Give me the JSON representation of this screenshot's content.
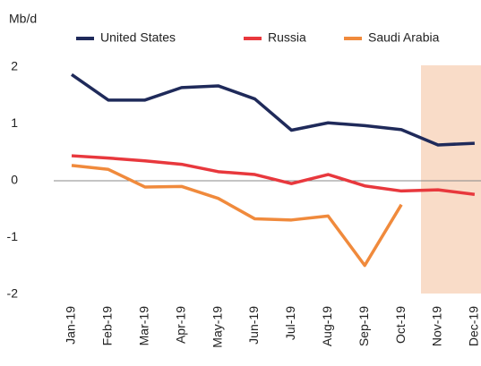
{
  "chart_data": {
    "type": "line",
    "y_label": "Mb/d",
    "categories": [
      "Jan-19",
      "Feb-19",
      "Mar-19",
      "Apr-19",
      "May-19",
      "Jun-19",
      "Jul-19",
      "Aug-19",
      "Sep-19",
      "Oct-19",
      "Nov-19",
      "Dec-19"
    ],
    "series": [
      {
        "name": "United States",
        "color": "#1f2a5a",
        "values": [
          1.87,
          1.42,
          1.42,
          1.64,
          1.67,
          1.44,
          0.89,
          1.02,
          0.97,
          0.9,
          0.63,
          0.66
        ]
      },
      {
        "name": "Russia",
        "color": "#e8383d",
        "values": [
          0.44,
          0.4,
          0.35,
          0.29,
          0.16,
          0.11,
          -0.05,
          0.11,
          -0.09,
          -0.18,
          -0.16,
          -0.24
        ]
      },
      {
        "name": "Saudi Arabia",
        "color": "#f08a3c",
        "values": [
          0.27,
          0.2,
          -0.11,
          -0.1,
          -0.31,
          -0.67,
          -0.69,
          -0.62,
          -1.49,
          -0.42,
          null,
          null
        ]
      }
    ],
    "ylim": [
      -2,
      2
    ],
    "yticks": [
      2,
      1,
      0,
      -1,
      -2
    ]
  }
}
